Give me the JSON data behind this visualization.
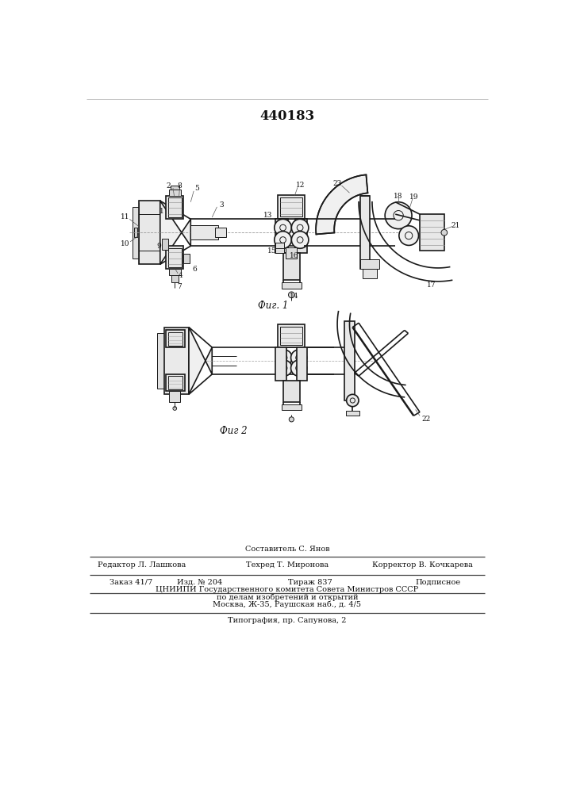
{
  "patent_number": "440183",
  "background_color": "#ffffff",
  "line_color": "#1a1a1a",
  "fig1_caption": "Фиг. 1",
  "fig2_caption": "Фиг 2",
  "footer": {
    "line1_center": "Составитель С. Янов",
    "line2_left": "Редактор Л. Лашкова",
    "line2_center": "Техред Т. Миронова",
    "line2_right": "Корректор В. Кочкарева",
    "line3_left": "Заказ 41/7",
    "line3_c1": "Изд. № 204",
    "line3_c2": "Тираж 837",
    "line3_right": "Подписное",
    "line4": "ЦНИИПИ Государственного комитета Совета Министров СССР",
    "line5": "по делам изобретений и открытий",
    "line6": "Москва, Ж-35, Раушская наб., д. 4/5",
    "line7": "Типография, пр. Сапунова, 2"
  }
}
